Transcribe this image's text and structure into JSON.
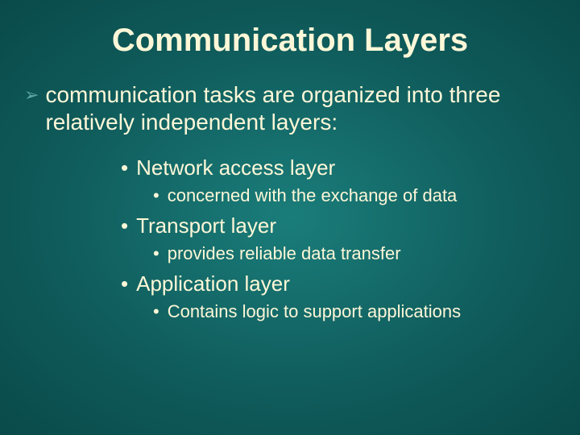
{
  "colors": {
    "background_center": "#1a7d7a",
    "background_edge": "#0a4a4a",
    "title_text": "#fdf7d8",
    "body_text": "#fdf7d8",
    "lvl1_bullet": "#5aa8a5"
  },
  "typography": {
    "font_family": "Arial",
    "title_size_pt": 40,
    "title_weight": "bold",
    "lvl1_size_pt": 28,
    "lvl2_size_pt": 26,
    "lvl3_size_pt": 22
  },
  "bullets": {
    "lvl1_glyph": "➢",
    "lvl2_glyph": "•",
    "lvl3_glyph": "•"
  },
  "slide": {
    "title": "Communication Layers",
    "lvl1_text": "communication tasks are organized into three relatively independent layers:",
    "items": [
      {
        "heading": "Network access layer",
        "sub": "concerned with the exchange of data",
        "indent_space": ""
      },
      {
        "heading": " Transport layer",
        "sub": "provides reliable data transfer",
        "indent_space": ""
      },
      {
        "heading": "Application layer",
        "sub": "Contains logic to support applications",
        "indent_space": ""
      }
    ]
  }
}
